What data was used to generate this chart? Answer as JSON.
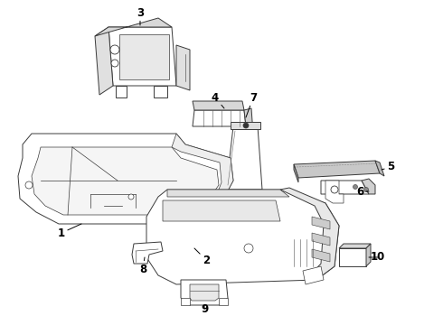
{
  "bg_color": "#ffffff",
  "line_color": "#3a3a3a",
  "label_color": "#000000",
  "figsize": [
    4.9,
    3.6
  ],
  "dpi": 100,
  "lw": 0.7,
  "parts": {
    "part3_label": [
      "3",
      155,
      18
    ],
    "part4_label": [
      "4",
      238,
      120
    ],
    "part7_label": [
      "7",
      278,
      118
    ],
    "part1_label": [
      "1",
      75,
      248
    ],
    "part2_label": [
      "2",
      228,
      282
    ],
    "part5_label": [
      "5",
      430,
      192
    ],
    "part6_label": [
      "6",
      395,
      208
    ],
    "part8_label": [
      "8",
      163,
      285
    ],
    "part9_label": [
      "9",
      234,
      337
    ],
    "part10_label": [
      "10",
      415,
      285
    ]
  }
}
